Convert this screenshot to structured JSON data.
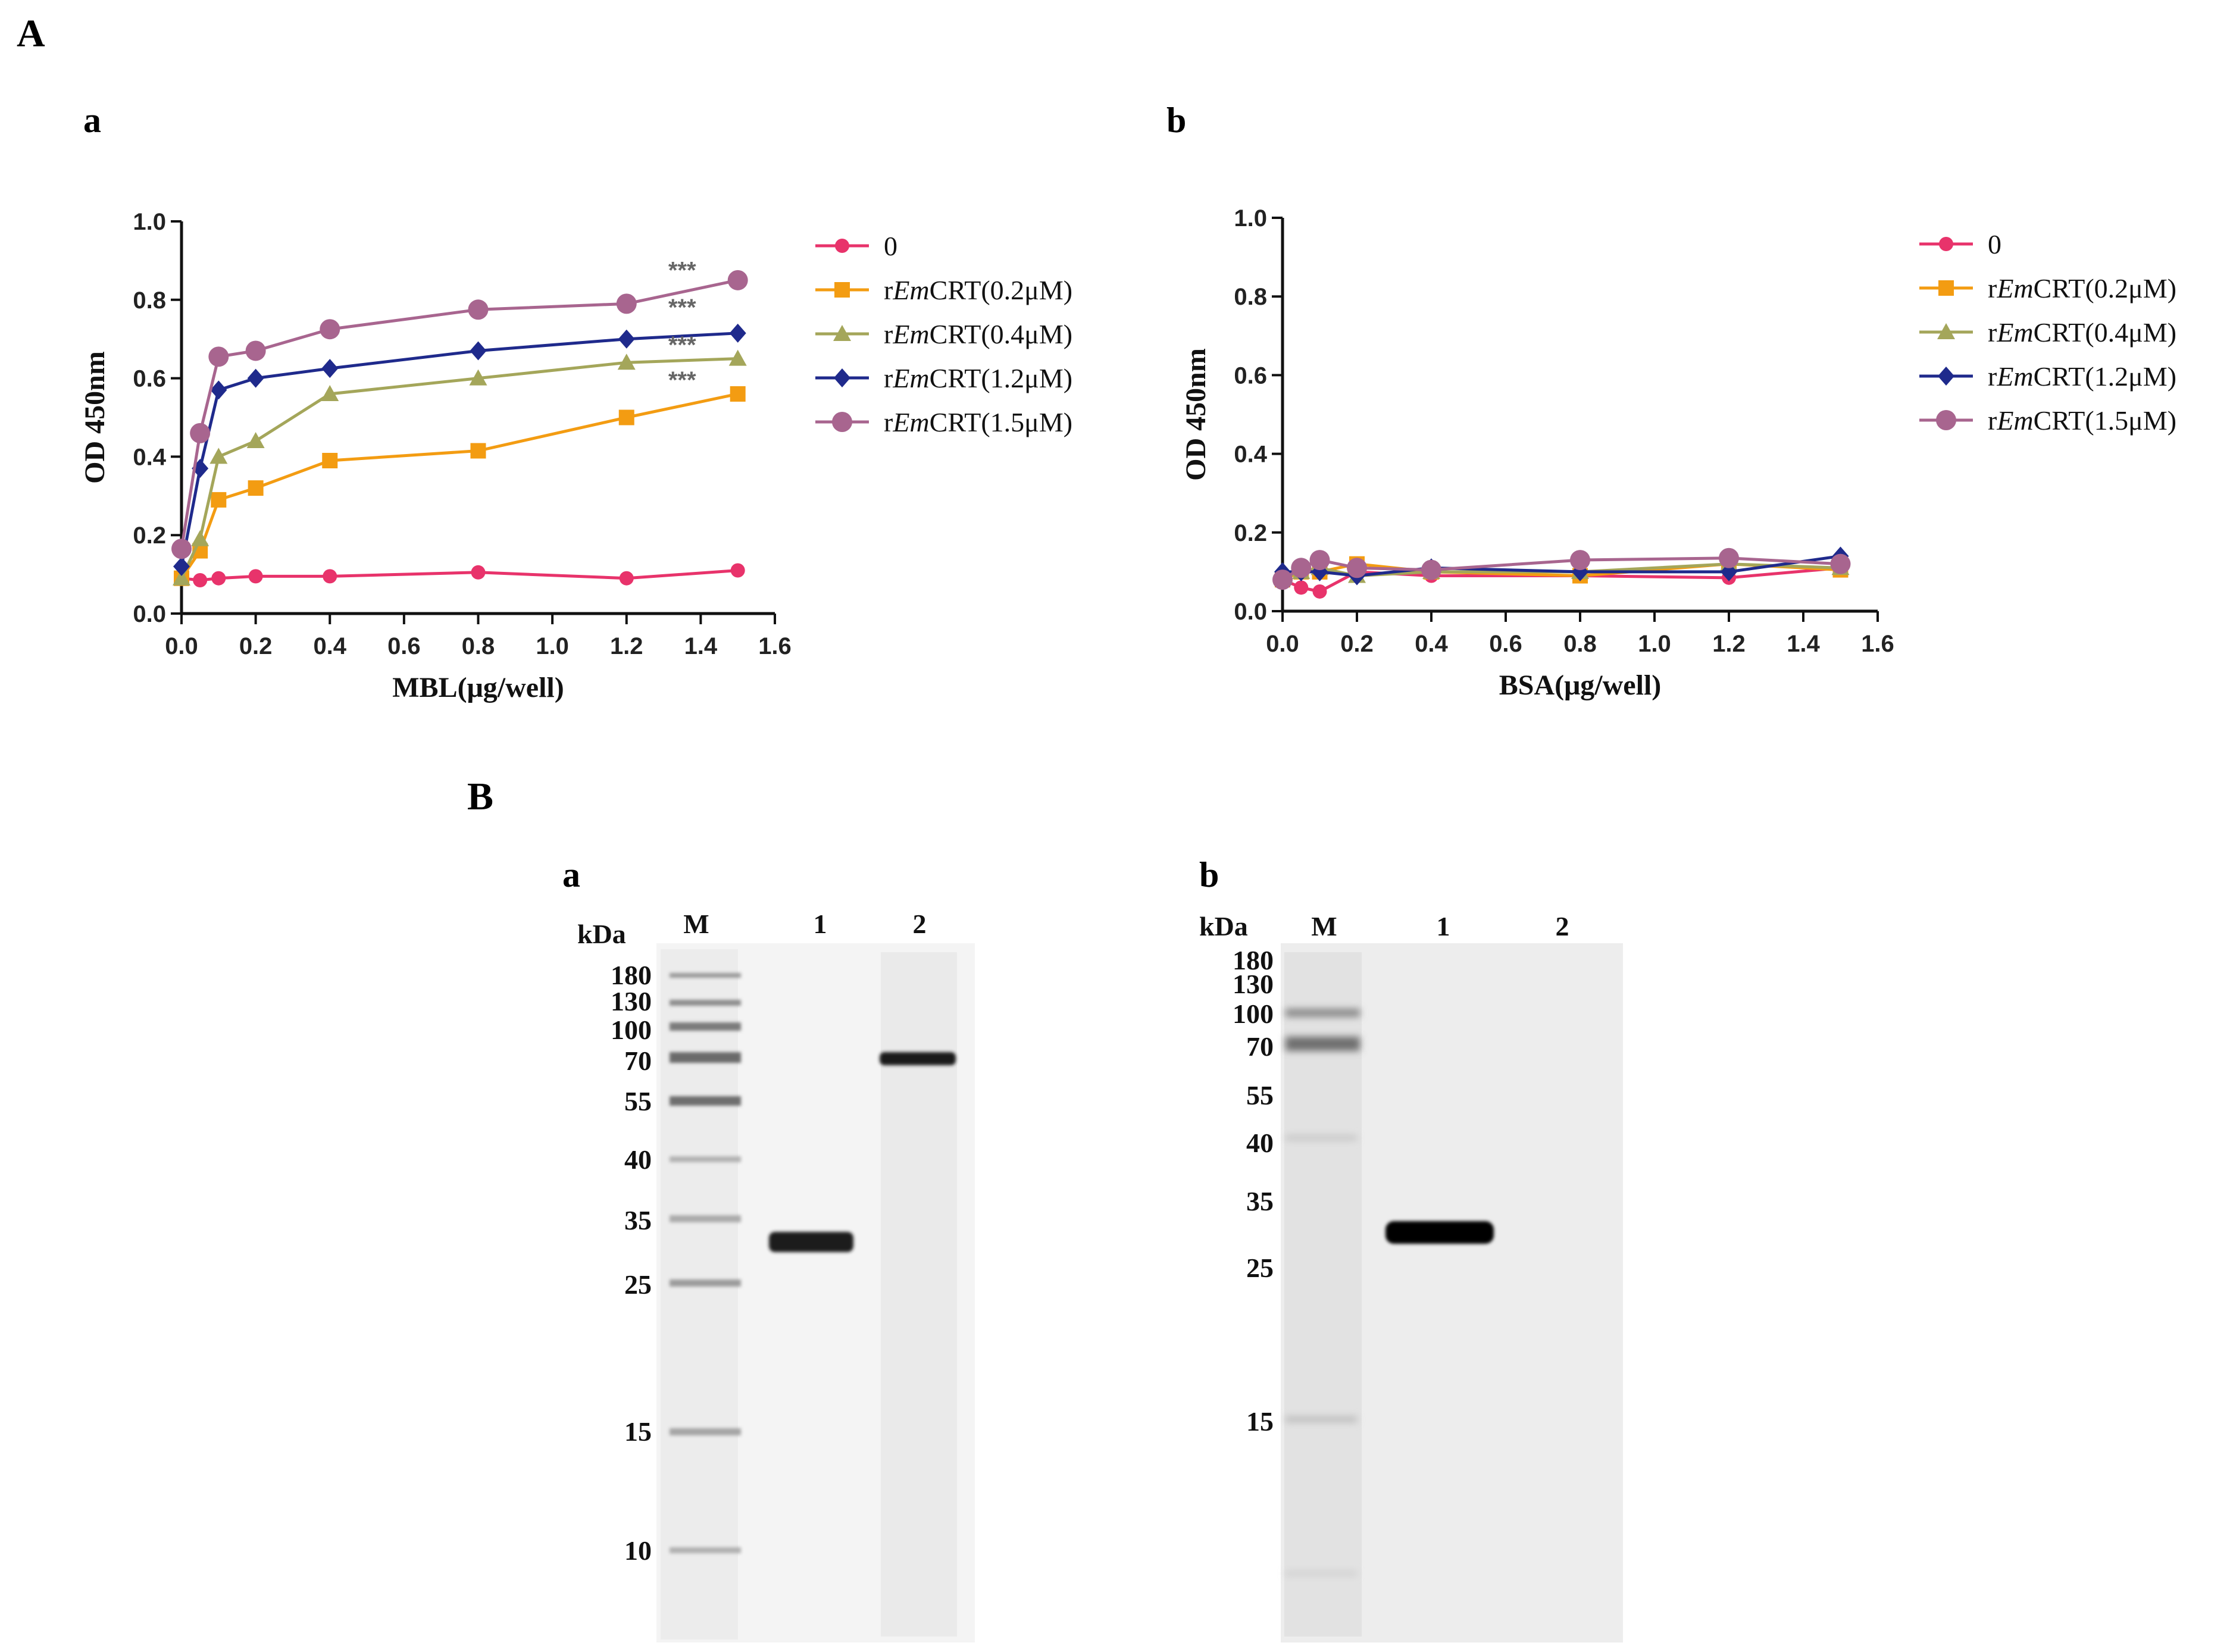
{
  "panel_labels": {
    "A": "A",
    "Aa": "a",
    "Ab": "b",
    "B": "B",
    "Ba": "a",
    "Bb": "b"
  },
  "colors": {
    "s0": "#e8336b",
    "s1": "#f39c12",
    "s2": "#a4a65a",
    "s3": "#1f2a8c",
    "s4": "#a8658f",
    "stars": "#666666"
  },
  "chart_data": [
    {
      "type": "line",
      "title": "a",
      "xlabel": "MBL(μg/well)",
      "ylabel": "OD 450nm",
      "xlim": [
        0,
        1.6
      ],
      "ylim": [
        0,
        1.0
      ],
      "xticks": [
        "0.0",
        "0.2",
        "0.4",
        "0.6",
        "0.8",
        "1.0",
        "1.2",
        "1.4",
        "1.6"
      ],
      "yticks": [
        "0.0",
        "0.2",
        "0.4",
        "0.6",
        "0.8",
        "1.0"
      ],
      "x": [
        0,
        0.05,
        0.1,
        0.2,
        0.4,
        0.8,
        1.2,
        1.5
      ],
      "series": [
        {
          "name": "0",
          "marker": "circle",
          "values": [
            0.09,
            0.085,
            0.09,
            0.095,
            0.095,
            0.105,
            0.09,
            0.11
          ]
        },
        {
          "name": "rEmCRT(0.2μM)",
          "marker": "square",
          "values": [
            0.09,
            0.16,
            0.29,
            0.32,
            0.39,
            0.415,
            0.5,
            0.56
          ]
        },
        {
          "name": "rEmCRT(0.4μM)",
          "marker": "triangle",
          "values": [
            0.09,
            0.19,
            0.4,
            0.44,
            0.56,
            0.6,
            0.64,
            0.65
          ]
        },
        {
          "name": "rEmCRT(1.2μM)",
          "marker": "diamond",
          "values": [
            0.12,
            0.37,
            0.57,
            0.6,
            0.625,
            0.67,
            0.7,
            0.715
          ]
        },
        {
          "name": "rEmCRT(1.5μM)",
          "marker": "circle-big",
          "values": [
            0.165,
            0.46,
            0.655,
            0.67,
            0.725,
            0.775,
            0.79,
            0.85
          ]
        }
      ],
      "annotations": [
        {
          "text": "***",
          "x": 1.35,
          "y": 0.855
        },
        {
          "text": "***",
          "x": 1.35,
          "y": 0.76
        },
        {
          "text": "***",
          "x": 1.35,
          "y": 0.665
        },
        {
          "text": "***",
          "x": 1.35,
          "y": 0.575
        }
      ],
      "legend": "right"
    },
    {
      "type": "line",
      "title": "b",
      "xlabel": "BSA(μg/well)",
      "ylabel": "OD 450nm",
      "xlim": [
        0,
        1.6
      ],
      "ylim": [
        0,
        1.0
      ],
      "xticks": [
        "0.0",
        "0.2",
        "0.4",
        "0.6",
        "0.8",
        "1.0",
        "1.2",
        "1.4",
        "1.6"
      ],
      "yticks": [
        "0.0",
        "0.2",
        "0.4",
        "0.6",
        "0.8",
        "1.0"
      ],
      "x": [
        0,
        0.05,
        0.1,
        0.2,
        0.4,
        0.8,
        1.2,
        1.5
      ],
      "series": [
        {
          "name": "0",
          "marker": "circle",
          "values": [
            0.08,
            0.06,
            0.05,
            0.1,
            0.09,
            0.09,
            0.085,
            0.11
          ]
        },
        {
          "name": "rEmCRT(0.2μM)",
          "marker": "square",
          "values": [
            0.08,
            0.1,
            0.1,
            0.12,
            0.1,
            0.09,
            0.12,
            0.105
          ]
        },
        {
          "name": "rEmCRT(0.4μM)",
          "marker": "triangle",
          "values": [
            0.085,
            0.1,
            0.11,
            0.09,
            0.1,
            0.1,
            0.12,
            0.11
          ]
        },
        {
          "name": "rEmCRT(1.2μM)",
          "marker": "diamond",
          "values": [
            0.1,
            0.1,
            0.1,
            0.09,
            0.11,
            0.1,
            0.1,
            0.14
          ]
        },
        {
          "name": "rEmCRT(1.5μM)",
          "marker": "circle-big",
          "values": [
            0.08,
            0.11,
            0.13,
            0.11,
            0.105,
            0.13,
            0.135,
            0.12
          ]
        }
      ],
      "legend": "right"
    }
  ],
  "gels": [
    {
      "label": "a",
      "unit": "kDa",
      "lanes": [
        "M",
        "1",
        "2"
      ],
      "markers": [
        "180",
        "130",
        "100",
        "70",
        "55",
        "40",
        "35",
        "25",
        "15",
        "10"
      ]
    },
    {
      "label": "b",
      "unit": "kDa",
      "lanes": [
        "M",
        "1",
        "2"
      ],
      "markers": [
        "180",
        "130",
        "100",
        "70",
        "55",
        "40",
        "35",
        "25",
        "15"
      ]
    }
  ]
}
